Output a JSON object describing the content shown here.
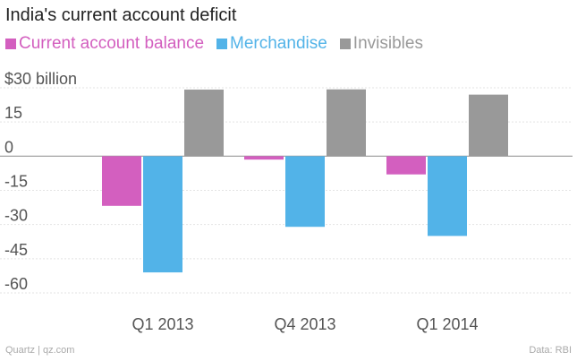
{
  "chart_data": {
    "type": "bar",
    "title": "India's current account deficit",
    "categories": [
      "Q1 2013",
      "Q4 2013",
      "Q1 2014"
    ],
    "series": [
      {
        "name": "Current account balance",
        "color": "#d35fbf",
        "values": [
          -21.8,
          -1.5,
          -8.0
        ]
      },
      {
        "name": "Merchandise",
        "color": "#52b3e8",
        "values": [
          -51.0,
          -31.0,
          -35.0
        ]
      },
      {
        "name": "Invisibles",
        "color": "#999999",
        "values": [
          29.2,
          29.3,
          27.0
        ]
      }
    ],
    "yticks": [
      30,
      15,
      0,
      -15,
      -30,
      -45,
      -60
    ],
    "ytick_labels": [
      "$30 billion",
      "15",
      "0",
      "-15",
      "-30",
      "-45",
      "-60"
    ],
    "ylim": [
      -60,
      30
    ],
    "xlabel": "",
    "ylabel": "",
    "grid": true,
    "legend_position": "top-left"
  },
  "footer": {
    "source_left": "Quartz | qz.com",
    "source_right": "Data: RBI"
  }
}
